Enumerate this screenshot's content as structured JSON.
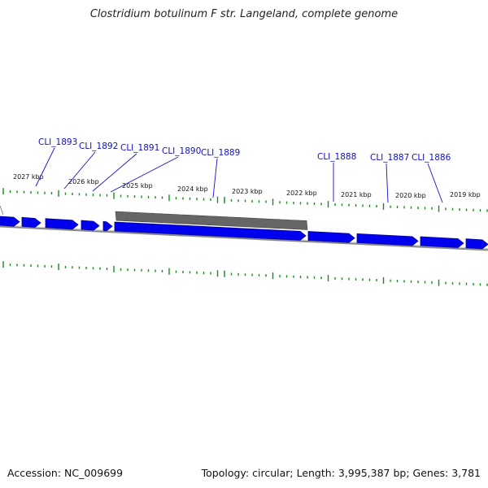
{
  "title": "Clostridium botulinum F str. Langeland, complete genome",
  "footer": {
    "accession": "Accession: NC_009699",
    "summary": "Topology: circular; Length: 3,995,387 bp; Genes: 3,781"
  },
  "colors": {
    "gene_fill": "#0000ee",
    "gene_stroke": "#00009a",
    "backbone": "#888888",
    "rna_feature": "#666666",
    "gc_tick": "#1a8a1a",
    "label": "#1010cc"
  },
  "map": {
    "kbp_ticks": [
      {
        "label": "2027 kbp",
        "kbp": 2027
      },
      {
        "label": "2026 kbp",
        "kbp": 2026
      },
      {
        "label": "2025 kbp",
        "kbp": 2025
      },
      {
        "label": "2024 kbp",
        "kbp": 2024
      },
      {
        "label": "2023 kbp",
        "kbp": 2023
      },
      {
        "label": "2022 kbp",
        "kbp": 2022
      },
      {
        "label": "2021 kbp",
        "kbp": 2021
      },
      {
        "label": "2020 kbp",
        "kbp": 2020
      },
      {
        "label": "2019 kbp",
        "kbp": 2019
      }
    ],
    "genes": [
      {
        "label": "CLI_1893"
      },
      {
        "label": "CLI_1892"
      },
      {
        "label": "CLI_1891"
      },
      {
        "label": "CLI_1890"
      },
      {
        "label": "CLI_1889"
      },
      {
        "label": "CLI_1888"
      },
      {
        "label": "CLI_1887"
      },
      {
        "label": "CLI_1886"
      }
    ]
  }
}
